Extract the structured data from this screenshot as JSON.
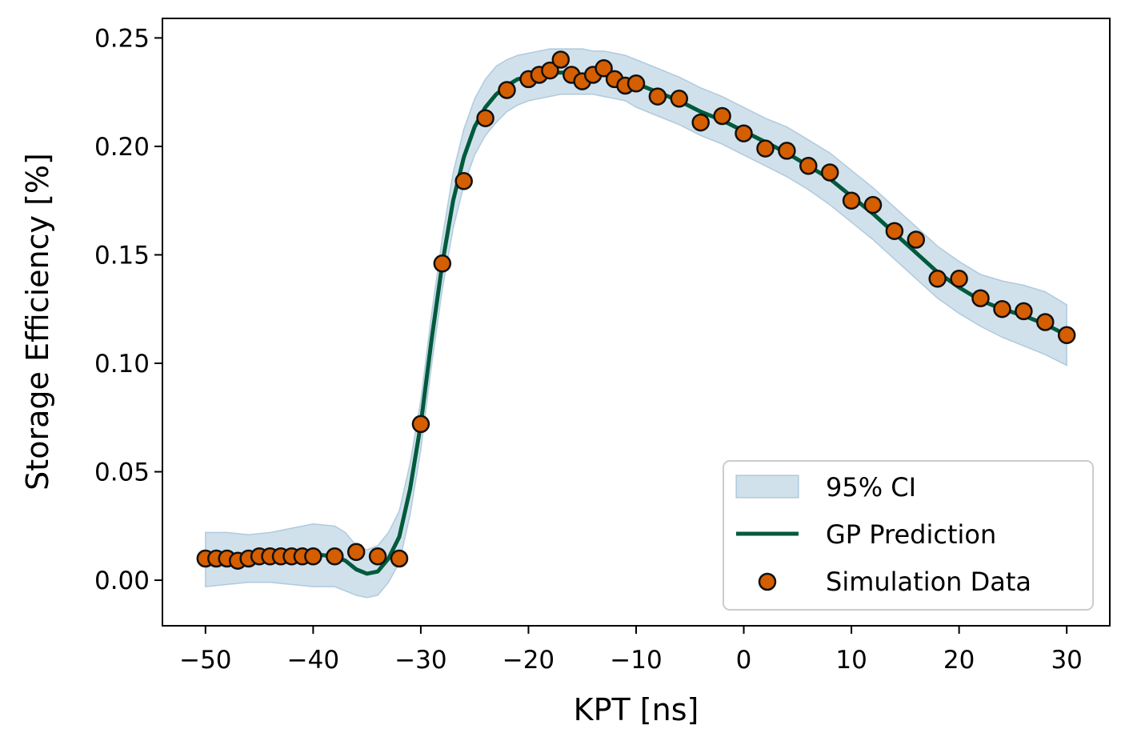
{
  "chart_data": {
    "type": "line",
    "title": "",
    "xlabel": "KPT [ns]",
    "ylabel": "Storage Efficiency [%]",
    "xlim": [
      -54,
      34
    ],
    "ylim": [
      -0.021,
      0.259
    ],
    "xticks": [
      -50,
      -40,
      -30,
      -20,
      -10,
      0,
      10,
      20,
      30
    ],
    "xtick_labels": [
      "−50",
      "−40",
      "−30",
      "−20",
      "−10",
      "0",
      "10",
      "20",
      "30"
    ],
    "yticks": [
      0.0,
      0.05,
      0.1,
      0.15,
      0.2,
      0.25
    ],
    "ytick_labels": [
      "0.00",
      "0.05",
      "0.10",
      "0.15",
      "0.20",
      "0.25"
    ],
    "grid": false,
    "legend_position": "lower-right",
    "legend": [
      "95% CI",
      "GP Prediction",
      "Simulation Data"
    ],
    "colors": {
      "ci_fill": "#a9c8dd",
      "ci_edge": "#7ea8c8",
      "gp_line": "#005a3c",
      "point_fill": "#d55e00",
      "point_edge": "#111111"
    },
    "series": [
      {
        "name": "Simulation Data",
        "type": "scatter",
        "x": [
          -50,
          -49,
          -48,
          -47,
          -46,
          -45,
          -44,
          -43,
          -42,
          -41,
          -40,
          -38,
          -36,
          -34,
          -32,
          -30,
          -28,
          -26,
          -24,
          -22,
          -20,
          -19,
          -18,
          -17,
          -16,
          -15,
          -14,
          -13,
          -12,
          -11,
          -10,
          -8,
          -6,
          -4,
          -2,
          0,
          2,
          4,
          6,
          8,
          10,
          12,
          14,
          16,
          18,
          20,
          22,
          24,
          26,
          28,
          30
        ],
        "y": [
          0.01,
          0.01,
          0.01,
          0.009,
          0.01,
          0.011,
          0.011,
          0.011,
          0.011,
          0.011,
          0.011,
          0.011,
          0.013,
          0.011,
          0.01,
          0.072,
          0.146,
          0.184,
          0.213,
          0.226,
          0.231,
          0.233,
          0.235,
          0.24,
          0.233,
          0.23,
          0.233,
          0.236,
          0.231,
          0.228,
          0.229,
          0.223,
          0.222,
          0.211,
          0.214,
          0.206,
          0.199,
          0.198,
          0.191,
          0.188,
          0.175,
          0.173,
          0.161,
          0.157,
          0.139,
          0.139,
          0.13,
          0.125,
          0.124,
          0.119,
          0.113
        ]
      },
      {
        "name": "GP Prediction",
        "type": "line",
        "x": [
          -50,
          -48,
          -46,
          -44,
          -42,
          -40,
          -38,
          -37,
          -36,
          -35,
          -34,
          -33,
          -32,
          -31,
          -30,
          -29,
          -28,
          -27,
          -26,
          -25,
          -24,
          -23,
          -22,
          -21,
          -20,
          -19,
          -18,
          -17,
          -16,
          -15,
          -14,
          -13,
          -12,
          -11,
          -10,
          -8,
          -6,
          -4,
          -2,
          0,
          2,
          4,
          6,
          8,
          10,
          12,
          14,
          16,
          18,
          20,
          22,
          24,
          26,
          28,
          30
        ],
        "y": [
          0.01,
          0.01,
          0.01,
          0.011,
          0.011,
          0.012,
          0.011,
          0.009,
          0.005,
          0.003,
          0.004,
          0.01,
          0.02,
          0.042,
          0.072,
          0.111,
          0.146,
          0.175,
          0.195,
          0.209,
          0.218,
          0.224,
          0.228,
          0.231,
          0.232,
          0.233,
          0.234,
          0.234,
          0.234,
          0.233,
          0.233,
          0.233,
          0.232,
          0.231,
          0.229,
          0.225,
          0.221,
          0.216,
          0.212,
          0.207,
          0.202,
          0.197,
          0.191,
          0.185,
          0.177,
          0.169,
          0.16,
          0.151,
          0.142,
          0.135,
          0.129,
          0.125,
          0.122,
          0.118,
          0.113
        ]
      },
      {
        "name": "95% CI",
        "type": "area",
        "x": [
          -50,
          -48,
          -46,
          -44,
          -42,
          -40,
          -38,
          -37,
          -36,
          -35,
          -34,
          -33,
          -32,
          -31,
          -30,
          -29,
          -28,
          -27,
          -26,
          -25,
          -24,
          -23,
          -22,
          -21,
          -20,
          -19,
          -18,
          -17,
          -16,
          -15,
          -14,
          -13,
          -12,
          -11,
          -10,
          -8,
          -6,
          -4,
          -2,
          0,
          2,
          4,
          6,
          8,
          10,
          12,
          14,
          16,
          18,
          20,
          22,
          24,
          26,
          28,
          30
        ],
        "upper": [
          0.022,
          0.022,
          0.021,
          0.022,
          0.024,
          0.026,
          0.025,
          0.022,
          0.016,
          0.014,
          0.016,
          0.022,
          0.032,
          0.054,
          0.083,
          0.123,
          0.158,
          0.188,
          0.208,
          0.222,
          0.231,
          0.237,
          0.24,
          0.242,
          0.243,
          0.244,
          0.245,
          0.245,
          0.245,
          0.245,
          0.244,
          0.244,
          0.243,
          0.242,
          0.24,
          0.236,
          0.232,
          0.227,
          0.223,
          0.218,
          0.213,
          0.209,
          0.203,
          0.197,
          0.189,
          0.181,
          0.172,
          0.163,
          0.154,
          0.147,
          0.141,
          0.138,
          0.136,
          0.133,
          0.127
        ],
        "lower": [
          -0.003,
          -0.002,
          -0.001,
          -0.001,
          -0.002,
          -0.003,
          -0.003,
          -0.005,
          -0.007,
          -0.008,
          -0.007,
          -0.001,
          0.008,
          0.03,
          0.06,
          0.099,
          0.134,
          0.162,
          0.182,
          0.196,
          0.205,
          0.211,
          0.216,
          0.219,
          0.221,
          0.222,
          0.223,
          0.224,
          0.224,
          0.224,
          0.224,
          0.223,
          0.222,
          0.221,
          0.218,
          0.214,
          0.21,
          0.205,
          0.201,
          0.196,
          0.191,
          0.186,
          0.18,
          0.173,
          0.165,
          0.157,
          0.148,
          0.139,
          0.13,
          0.123,
          0.117,
          0.112,
          0.108,
          0.104,
          0.099
        ]
      }
    ]
  }
}
